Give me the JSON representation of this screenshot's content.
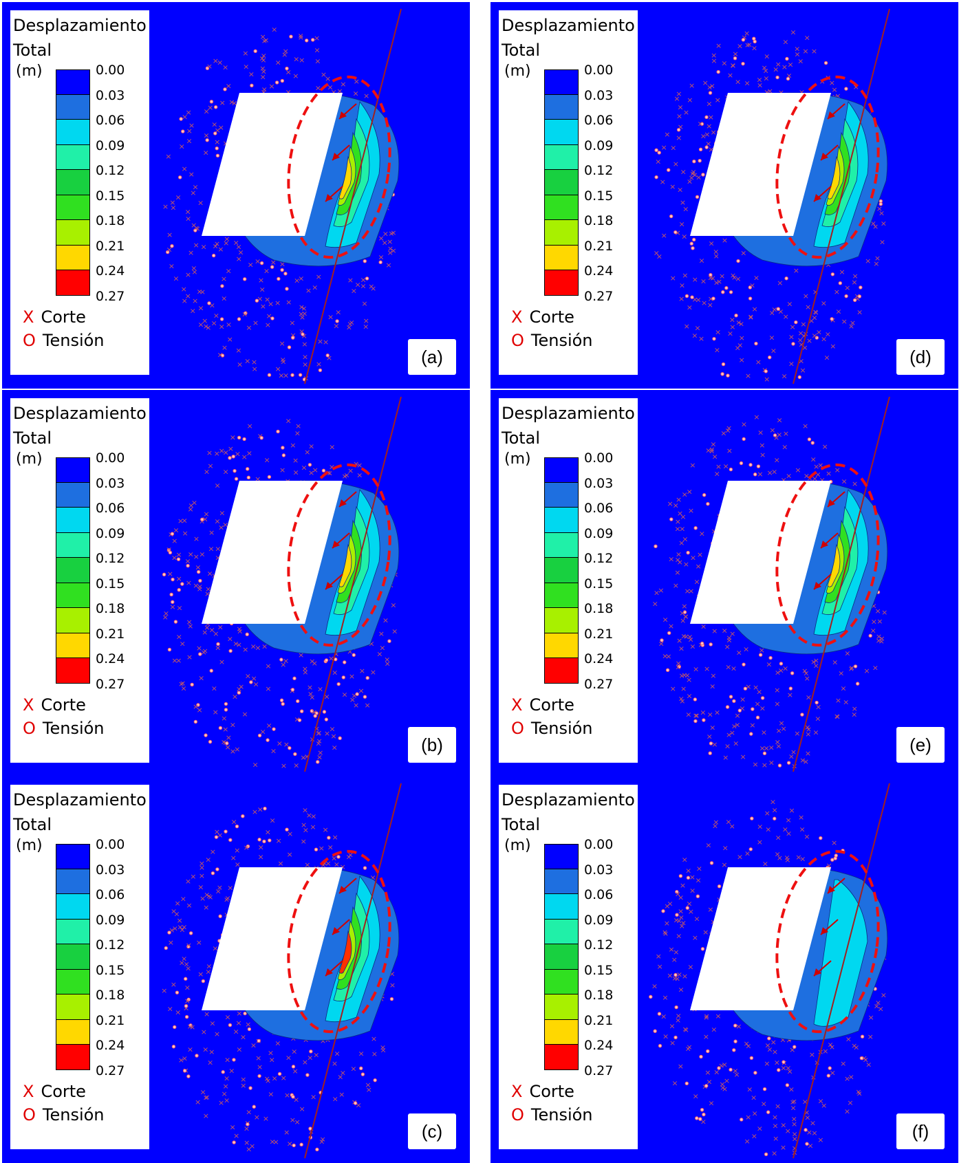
{
  "legend": {
    "title_line1": "Desplazamiento",
    "title_line2": "Total",
    "unit": "(m)",
    "ticks": [
      "0.00",
      "0.03",
      "0.06",
      "0.09",
      "0.12",
      "0.15",
      "0.18",
      "0.21",
      "0.24",
      "0.27"
    ],
    "colors": [
      "#0000ff",
      "#1e6fe0",
      "#00d8f0",
      "#20f0a8",
      "#18d040",
      "#30e020",
      "#a8f000",
      "#ffd800",
      "#ff0000"
    ],
    "shear_marker": "X",
    "shear_label": "Corte",
    "tension_marker": "O",
    "tension_label": "Tensión"
  },
  "panels": [
    {
      "label": "(a)"
    },
    {
      "label": "(d)"
    },
    {
      "label": "(b)"
    },
    {
      "label": "(e)"
    },
    {
      "label": "(c)"
    },
    {
      "label": "(f)"
    }
  ]
}
